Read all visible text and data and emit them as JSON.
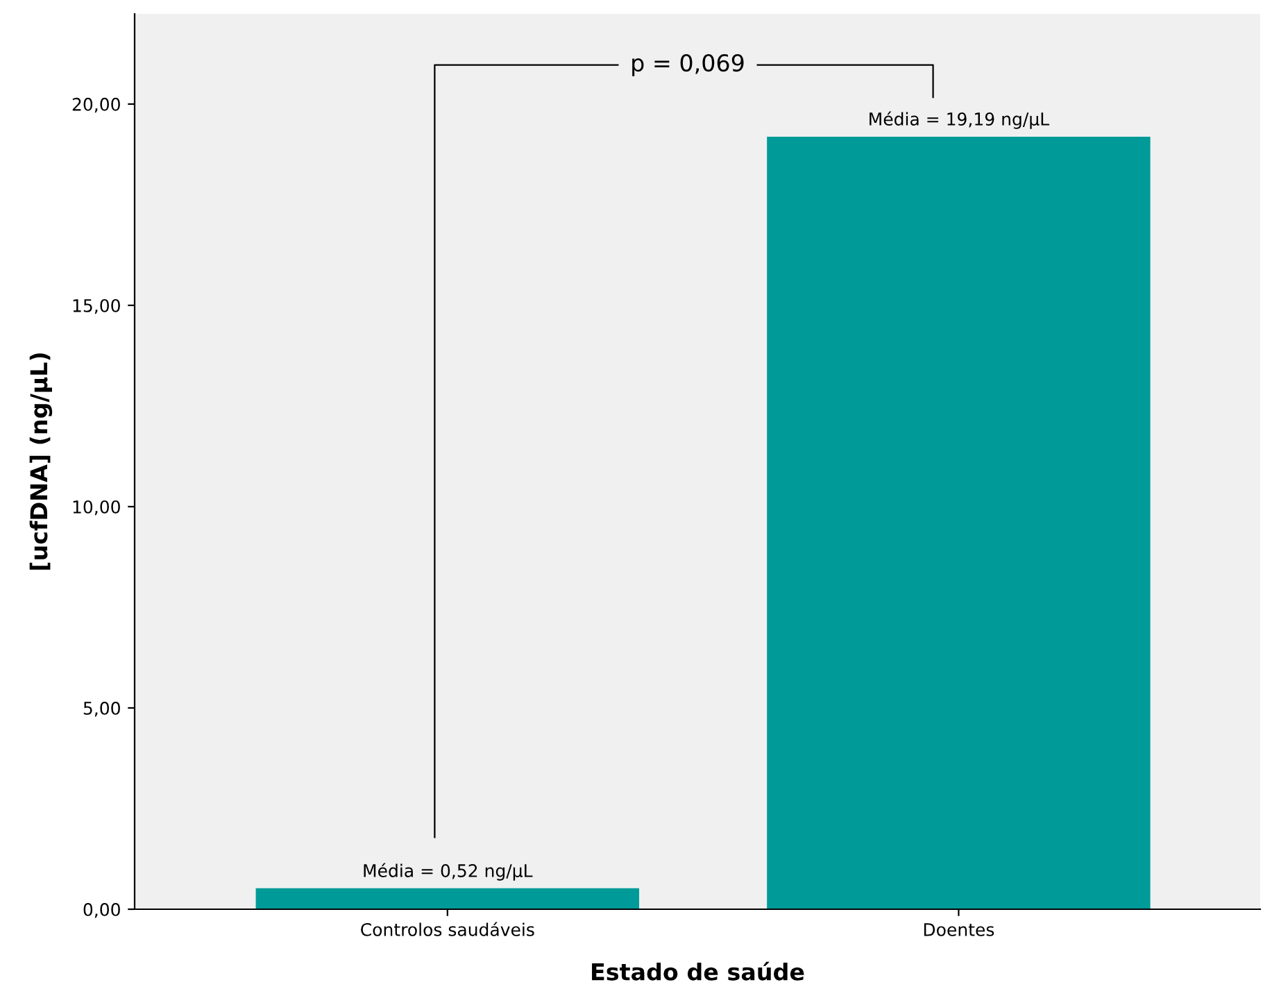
{
  "chart_data": {
    "type": "bar",
    "xlabel": "Estado de saúde",
    "ylabel": "[ucfDNA] (ng/µL)",
    "categories": [
      "Controlos saudáveis",
      "Doentes"
    ],
    "values": [
      0.52,
      19.19
    ],
    "color": "#009b98",
    "value_labels": [
      "Média = 0,52 ng/µL",
      "Média = 19,19 ng/µL"
    ],
    "ylim": [
      0,
      22.24
    ],
    "yticks": [
      {
        "value": 0,
        "label": "0,00"
      },
      {
        "value": 5,
        "label": "5,00"
      },
      {
        "value": 10,
        "label": "10,00"
      },
      {
        "value": 15,
        "label": "15,00"
      },
      {
        "value": 20,
        "label": "20,00"
      }
    ],
    "grid": false,
    "legend": false,
    "annotations": [
      "p = 0,069"
    ]
  }
}
